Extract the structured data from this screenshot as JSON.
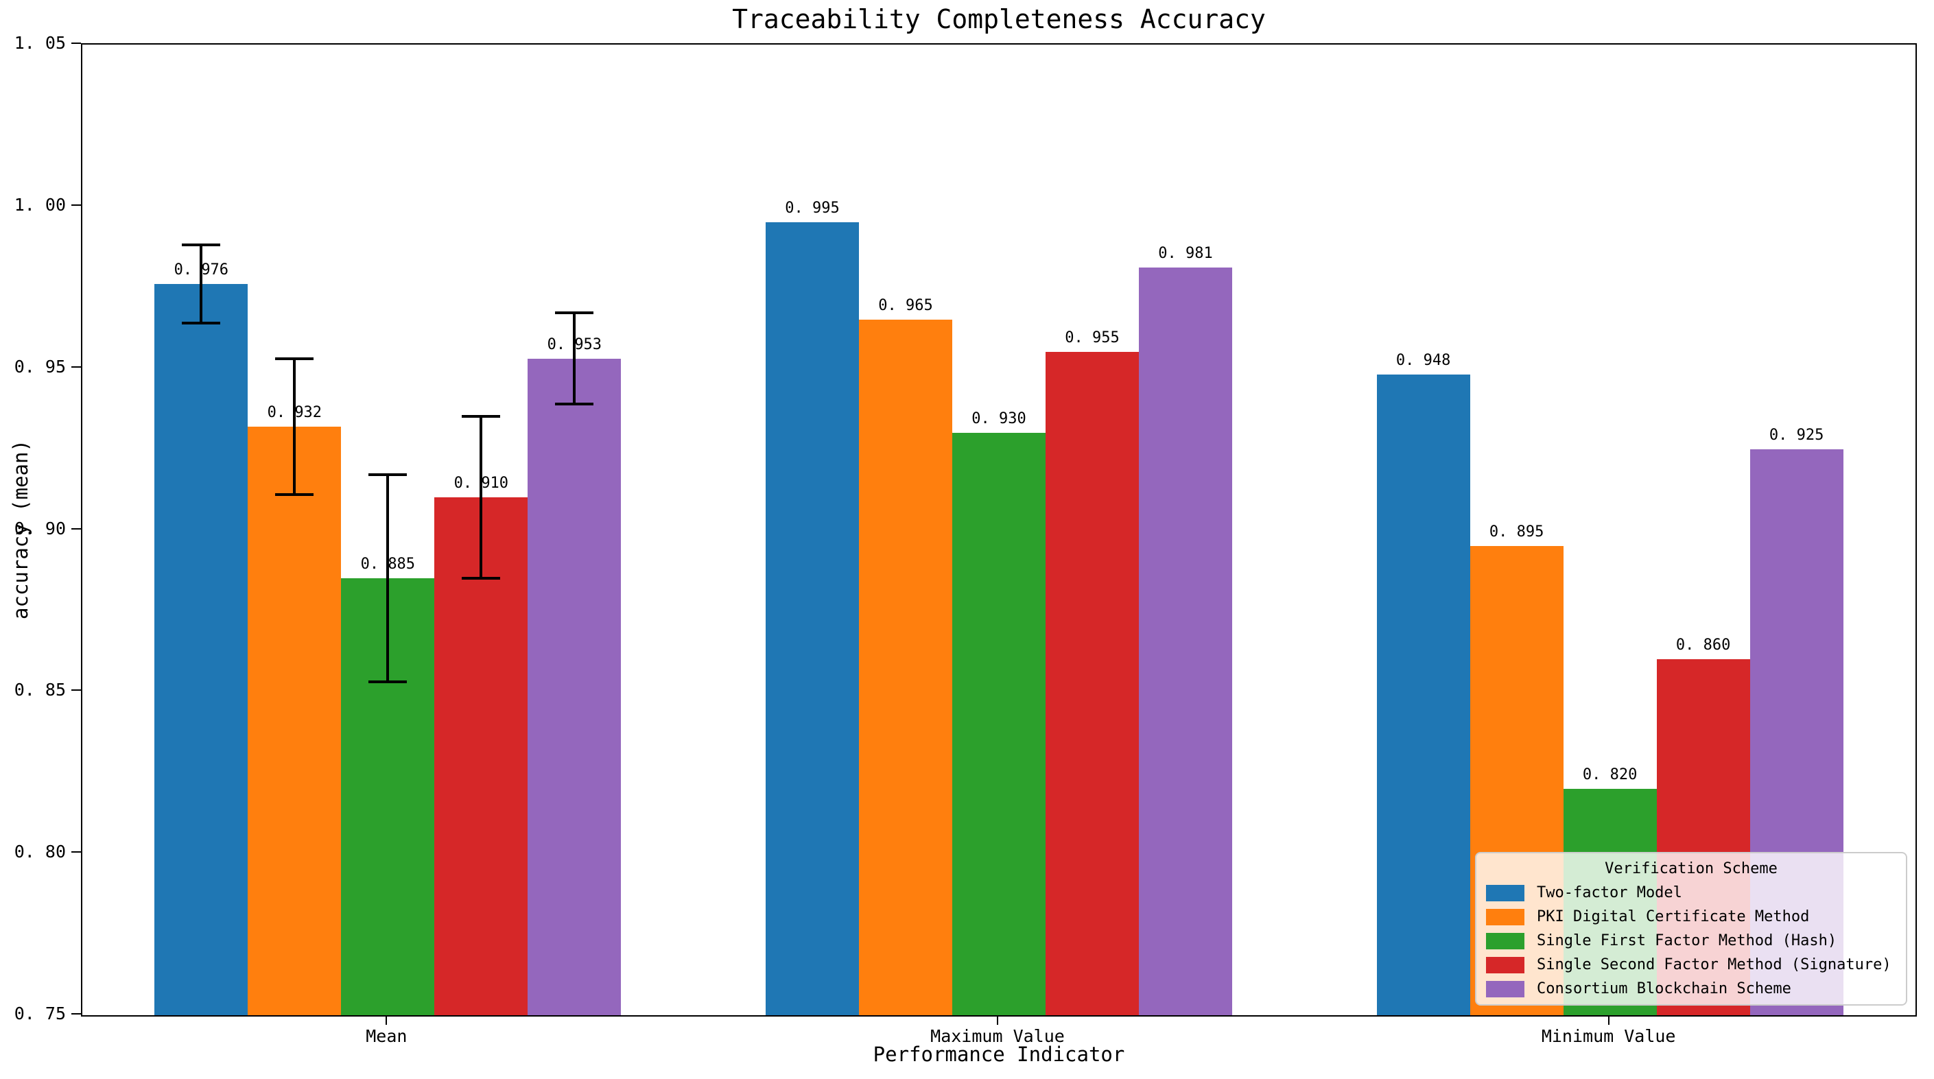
{
  "chart_data": {
    "type": "bar",
    "title": "Traceability Completeness Accuracy",
    "xlabel": "Performance Indicator",
    "ylabel": "accuracy (mean)",
    "categories": [
      "Mean",
      "Maximum Value",
      "Minimum Value"
    ],
    "series": [
      {
        "name": "Two-factor Model",
        "color": "#1f77b4",
        "values": [
          0.976,
          0.995,
          0.948
        ],
        "errors": [
          0.012,
          null,
          null
        ]
      },
      {
        "name": "PKI Digital Certificate Method",
        "color": "#ff7f0e",
        "values": [
          0.932,
          0.965,
          0.895
        ],
        "errors": [
          0.021,
          null,
          null
        ]
      },
      {
        "name": "Single First Factor Method (Hash)",
        "color": "#2ca02c",
        "values": [
          0.885,
          0.93,
          0.82
        ],
        "errors": [
          0.032,
          null,
          null
        ]
      },
      {
        "name": "Single Second Factor Method (Signature)",
        "color": "#d62728",
        "values": [
          0.91,
          0.955,
          0.86
        ],
        "errors": [
          0.025,
          null,
          null
        ]
      },
      {
        "name": "Consortium Blockchain Scheme",
        "color": "#9467bd",
        "values": [
          0.953,
          0.981,
          0.925
        ],
        "errors": [
          0.014,
          null,
          null
        ]
      }
    ],
    "bar_value_labels": [
      "0.976",
      "0.932",
      "0.885",
      "0.910",
      "0.953",
      "0.995",
      "0.965",
      "0.930",
      "0.955",
      "0.981",
      "0.948",
      "0.895",
      "0.820",
      "0.860",
      "0.925"
    ],
    "ylim": [
      0.75,
      1.05
    ],
    "yticks": [
      0.75,
      0.8,
      0.85,
      0.9,
      0.95,
      1.0,
      1.05
    ],
    "grid": false,
    "error_bar_color": "#000000",
    "legend": {
      "title": "Verification Scheme",
      "position": "lower right"
    }
  }
}
